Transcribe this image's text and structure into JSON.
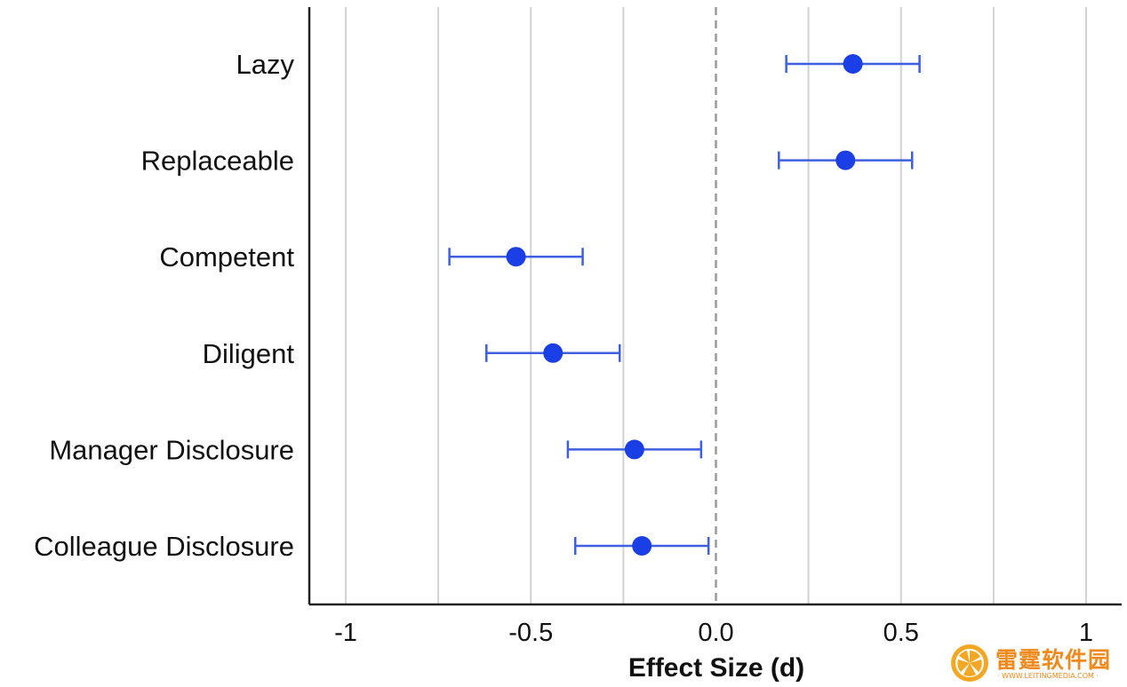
{
  "chart_data": {
    "type": "scatter",
    "title": "",
    "xlabel": "Effect Size (d)",
    "ylabel": "",
    "xlim": [
      -1.1,
      1.1
    ],
    "xticks": [
      -1,
      -0.75,
      -0.5,
      -0.25,
      0,
      0.25,
      0.5,
      0.75,
      1
    ],
    "xtick_labels": [
      {
        "value": -1,
        "label": "-1"
      },
      {
        "value": -0.5,
        "label": "-0.5"
      },
      {
        "value": 0,
        "label": "0.0"
      },
      {
        "value": 0.5,
        "label": "0.5"
      },
      {
        "value": 1,
        "label": "1"
      }
    ],
    "reference_line": {
      "x": 0,
      "style": "dashed"
    },
    "grid": "vertical",
    "marker_color": "#1a3fe6",
    "errorbar_color": "#3d5fe0",
    "points": [
      {
        "label": "Lazy",
        "estimate": 0.37,
        "ci_low": 0.19,
        "ci_high": 0.55
      },
      {
        "label": "Replaceable",
        "estimate": 0.35,
        "ci_low": 0.17,
        "ci_high": 0.53
      },
      {
        "label": "Competent",
        "estimate": -0.54,
        "ci_low": -0.72,
        "ci_high": -0.36
      },
      {
        "label": "Diligent",
        "estimate": -0.44,
        "ci_low": -0.62,
        "ci_high": -0.26
      },
      {
        "label": "Manager Disclosure",
        "estimate": -0.22,
        "ci_low": -0.4,
        "ci_high": -0.04
      },
      {
        "label": "Colleague Disclosure",
        "estimate": -0.2,
        "ci_low": -0.38,
        "ci_high": -0.02
      }
    ]
  },
  "watermark": {
    "text": "雷霆软件园",
    "url": "WWW.LEITINGMEDIA.COM"
  }
}
